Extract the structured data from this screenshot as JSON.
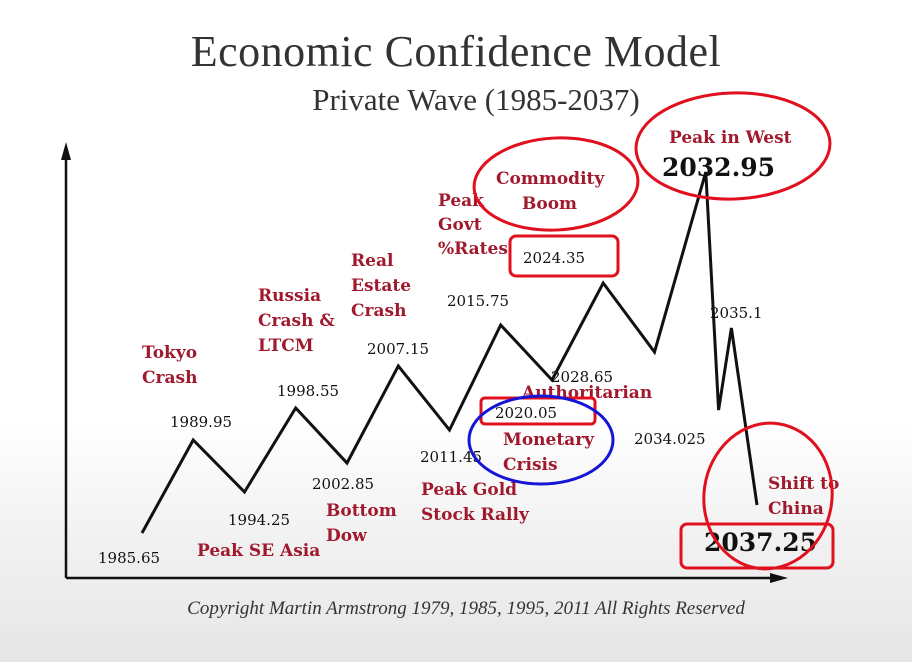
{
  "title": "Economic Confidence Model",
  "subtitle": "Private Wave (1985-2037)",
  "copyright": "Copyright Martin Armstrong 1979, 1985, 1995, 2011 All Rights Reserved",
  "chart_data": {
    "type": "line",
    "title": "Economic Confidence Model",
    "subtitle": "Private Wave (1985-2037)",
    "x": [
      1985.65,
      1989.95,
      1994.25,
      1998.55,
      2002.85,
      2007.15,
      2011.45,
      2015.75,
      2020.05,
      2024.35,
      2028.65,
      2032.95,
      2034.025,
      2035.1,
      2037.25
    ],
    "date_labels": [
      "1985.65",
      "1989.95",
      "1994.25",
      "1998.55",
      "2002.85",
      "2007.15",
      "2011.45",
      "2015.75",
      "2020.05",
      "2024.35",
      "2028.65",
      "2032.95",
      "2034.025",
      "2035.1",
      "2037.25"
    ],
    "events": [
      {
        "text": "Tokyo Crash",
        "lines": [
          "Tokyo",
          "Crash"
        ]
      },
      {
        "text": "Peak SE Asia",
        "lines": [
          "Peak SE Asia"
        ]
      },
      {
        "text": "Russia Crash & LTCM",
        "lines": [
          "Russia",
          "Crash &",
          "LTCM"
        ]
      },
      {
        "text": "Bottom Dow",
        "lines": [
          "Bottom",
          "Dow"
        ]
      },
      {
        "text": "Real Estate Crash",
        "lines": [
          "Real",
          "Estate",
          "Crash"
        ]
      },
      {
        "text": "Peak Gold Stock Rally",
        "lines": [
          "Peak Gold",
          "Stock Rally"
        ]
      },
      {
        "text": "Peak Govt %Rates",
        "lines": [
          "Peak",
          "Govt",
          "%Rates"
        ]
      },
      {
        "text": "Authoritarian",
        "lines": [
          "Authoritarian"
        ]
      },
      {
        "text": "Monetary Crisis",
        "lines": [
          "Monetary",
          "Crisis"
        ]
      },
      {
        "text": "Commodity Boom",
        "lines": [
          "Commodity",
          "Boom"
        ]
      },
      {
        "text": "Peak in West",
        "lines": [
          "Peak in West"
        ]
      },
      {
        "text": "Shift to China",
        "lines": [
          "Shift to",
          "China"
        ]
      }
    ],
    "annotation_color": "#e0101e",
    "highlight_color": "#1515d8",
    "event_color": "#a0192d"
  }
}
